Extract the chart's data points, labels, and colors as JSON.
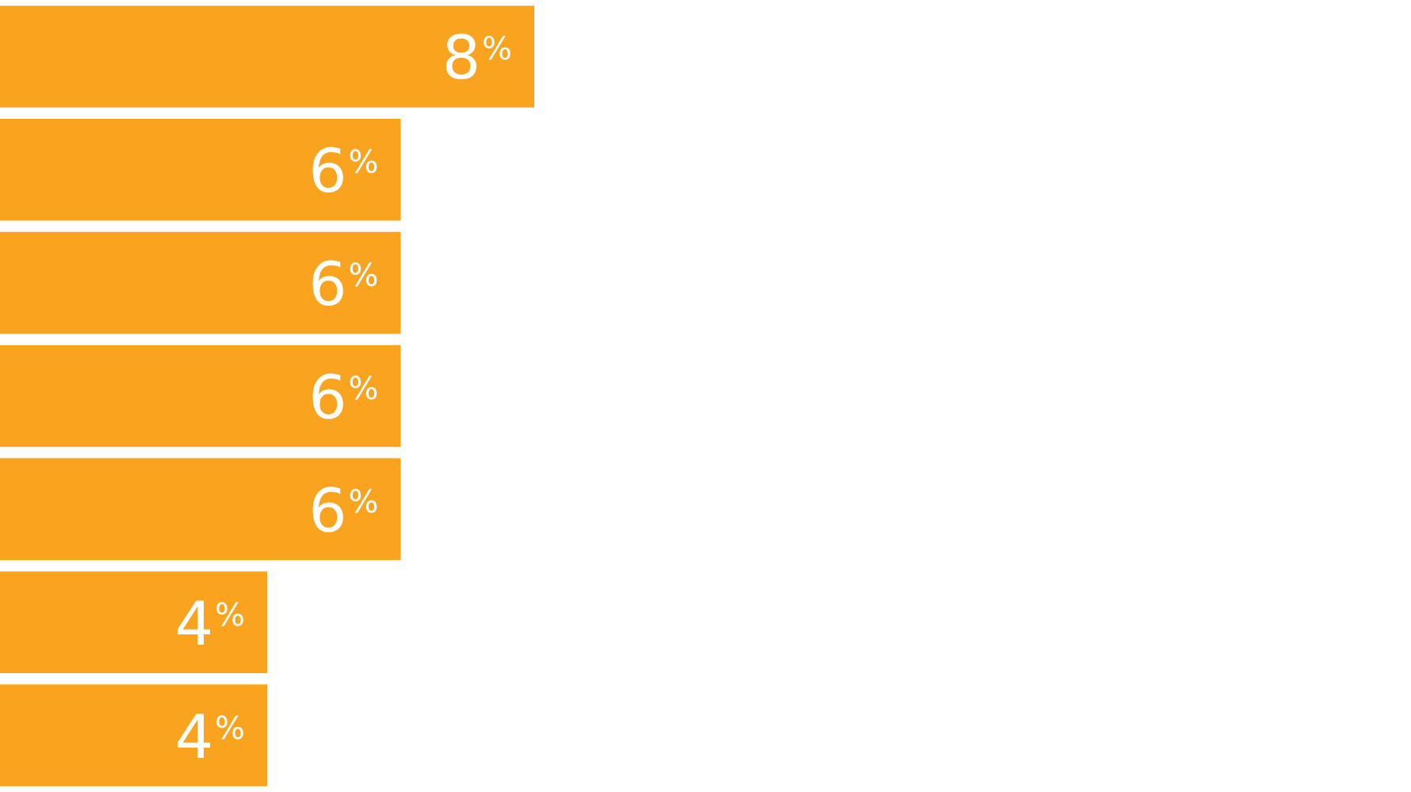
{
  "chart_data": {
    "type": "bar",
    "orientation": "horizontal",
    "categories": [
      null,
      null,
      null,
      null,
      null,
      null,
      null
    ],
    "values": [
      8,
      6,
      6,
      6,
      6,
      4,
      4
    ],
    "color": "#f9a31e",
    "value_labels": [
      "8%",
      "6%",
      "6%",
      "6%",
      "6%",
      "4%",
      "4%"
    ],
    "legend": false,
    "tick_labels": false
  }
}
